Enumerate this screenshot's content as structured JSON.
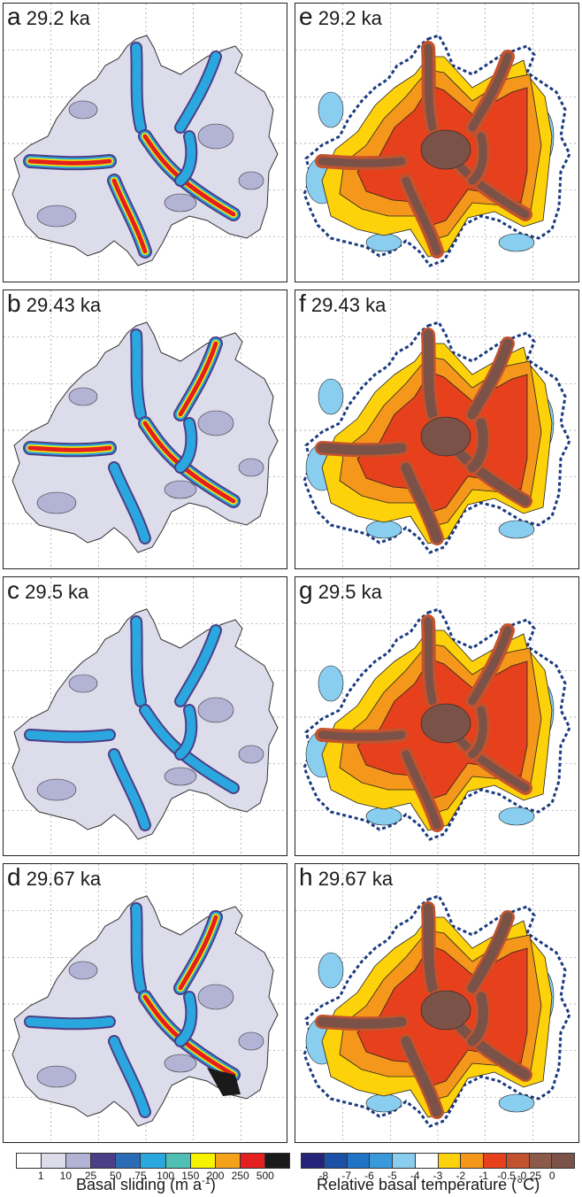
{
  "panels": [
    {
      "letter": "a",
      "time": "29.2 ka",
      "kind": "sliding"
    },
    {
      "letter": "e",
      "time": "29.2 ka",
      "kind": "temperature"
    },
    {
      "letter": "b",
      "time": "29.43 ka",
      "kind": "sliding"
    },
    {
      "letter": "f",
      "time": "29.43 ka",
      "kind": "temperature"
    },
    {
      "letter": "c",
      "time": "29.5 ka",
      "kind": "sliding"
    },
    {
      "letter": "g",
      "time": "29.5 ka",
      "kind": "temperature"
    },
    {
      "letter": "d",
      "time": "29.67 ka",
      "kind": "sliding"
    },
    {
      "letter": "h",
      "time": "29.67 ka",
      "kind": "temperature"
    }
  ],
  "colorbars": {
    "sliding": {
      "title": "Basal sliding (m a",
      "title_sup": "-1",
      "title_end": ")",
      "ticks": [
        "1",
        "10",
        "25",
        "50",
        "75",
        "100",
        "150",
        "200",
        "250",
        "500"
      ],
      "colors": [
        "#ffffff",
        "#dcdceb",
        "#b3b3d6",
        "#4a3f86",
        "#2c6bb5",
        "#2ba7df",
        "#4fbfb4",
        "#f7f200",
        "#f5a21b",
        "#e41f1f",
        "#1a1a1a"
      ]
    },
    "temperature": {
      "title": "Relative basal temperature (°C)",
      "ticks": [
        "-8",
        "-7",
        "-6",
        "-5",
        "-4",
        "-3",
        "-2",
        "-1",
        "-0.5",
        "-0.25",
        "0"
      ],
      "colors": [
        "#23237a",
        "#1c4fa6",
        "#1f74c6",
        "#3a99dc",
        "#89cdef",
        "#ffffff",
        "#fdd20a",
        "#f4971a",
        "#e7401c",
        "#c2532e",
        "#8c5a48",
        "#7a5248"
      ]
    }
  }
}
